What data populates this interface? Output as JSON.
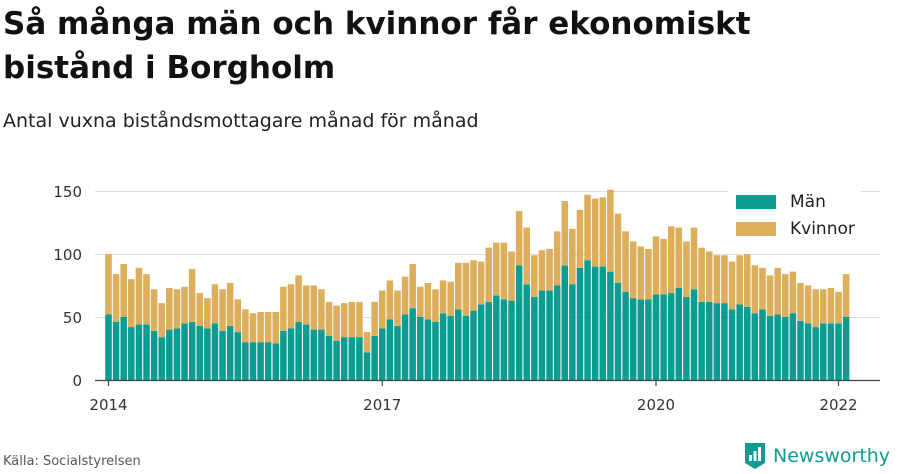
{
  "title": "Så många män och kvinnor får ekonomiskt bistånd i Borgholm",
  "subtitle": "Antal vuxna biståndsmottagare månad för månad",
  "source": "Källa: Socialstyrelsen",
  "brand": {
    "name": "Newsworthy",
    "icon": "newsworthy-logo-icon"
  },
  "colors": {
    "men": "#0d9c91",
    "women": "#ddae5c",
    "grid": "#dddddd",
    "axis": "#444444"
  },
  "legend": [
    {
      "label": "Män",
      "color": "#0d9c91"
    },
    {
      "label": "Kvinnor",
      "color": "#ddae5c"
    }
  ],
  "chart_data": {
    "type": "bar",
    "stacked": true,
    "x_start": "2014-01",
    "x_ticks": [
      "2014",
      "2017",
      "2020",
      "2022"
    ],
    "y_ticks": [
      0,
      50,
      100,
      150
    ],
    "ylim": [
      0,
      160
    ],
    "grid": true,
    "legend_position": "top-right",
    "series": [
      {
        "name": "Män",
        "color": "#0d9c91",
        "values": [
          52,
          46,
          50,
          42,
          44,
          44,
          39,
          34,
          40,
          41,
          45,
          46,
          43,
          41,
          45,
          39,
          43,
          38,
          30,
          30,
          30,
          30,
          29,
          39,
          41,
          46,
          44,
          40,
          40,
          35,
          31,
          34,
          34,
          34,
          22,
          35,
          41,
          48,
          43,
          52,
          57,
          50,
          48,
          46,
          53,
          51,
          56,
          51,
          55,
          60,
          62,
          67,
          64,
          63,
          91,
          76,
          66,
          71,
          71,
          75,
          91,
          76,
          89,
          95,
          90,
          90,
          86,
          77,
          70,
          65,
          64,
          64,
          68,
          68,
          69,
          73,
          66,
          72,
          62,
          62,
          61,
          61,
          56,
          60,
          58,
          53,
          56,
          51,
          52,
          50,
          53,
          47,
          45,
          42,
          45,
          45,
          45,
          50
        ]
      },
      {
        "name": "Kvinnor",
        "color": "#ddae5c",
        "values": [
          48,
          38,
          42,
          38,
          45,
          40,
          33,
          27,
          33,
          31,
          29,
          42,
          26,
          24,
          31,
          33,
          34,
          26,
          26,
          23,
          24,
          24,
          25,
          35,
          35,
          37,
          31,
          35,
          32,
          27,
          28,
          27,
          28,
          28,
          16,
          27,
          30,
          31,
          28,
          30,
          35,
          24,
          29,
          26,
          26,
          27,
          37,
          42,
          40,
          34,
          43,
          42,
          45,
          39,
          43,
          45,
          33,
          32,
          33,
          43,
          51,
          44,
          46,
          52,
          54,
          55,
          65,
          55,
          48,
          45,
          42,
          40,
          46,
          44,
          53,
          48,
          44,
          49,
          43,
          40,
          38,
          38,
          38,
          39,
          42,
          38,
          33,
          32,
          37,
          34,
          33,
          30,
          30,
          30,
          27,
          28,
          25,
          34
        ]
      }
    ]
  }
}
